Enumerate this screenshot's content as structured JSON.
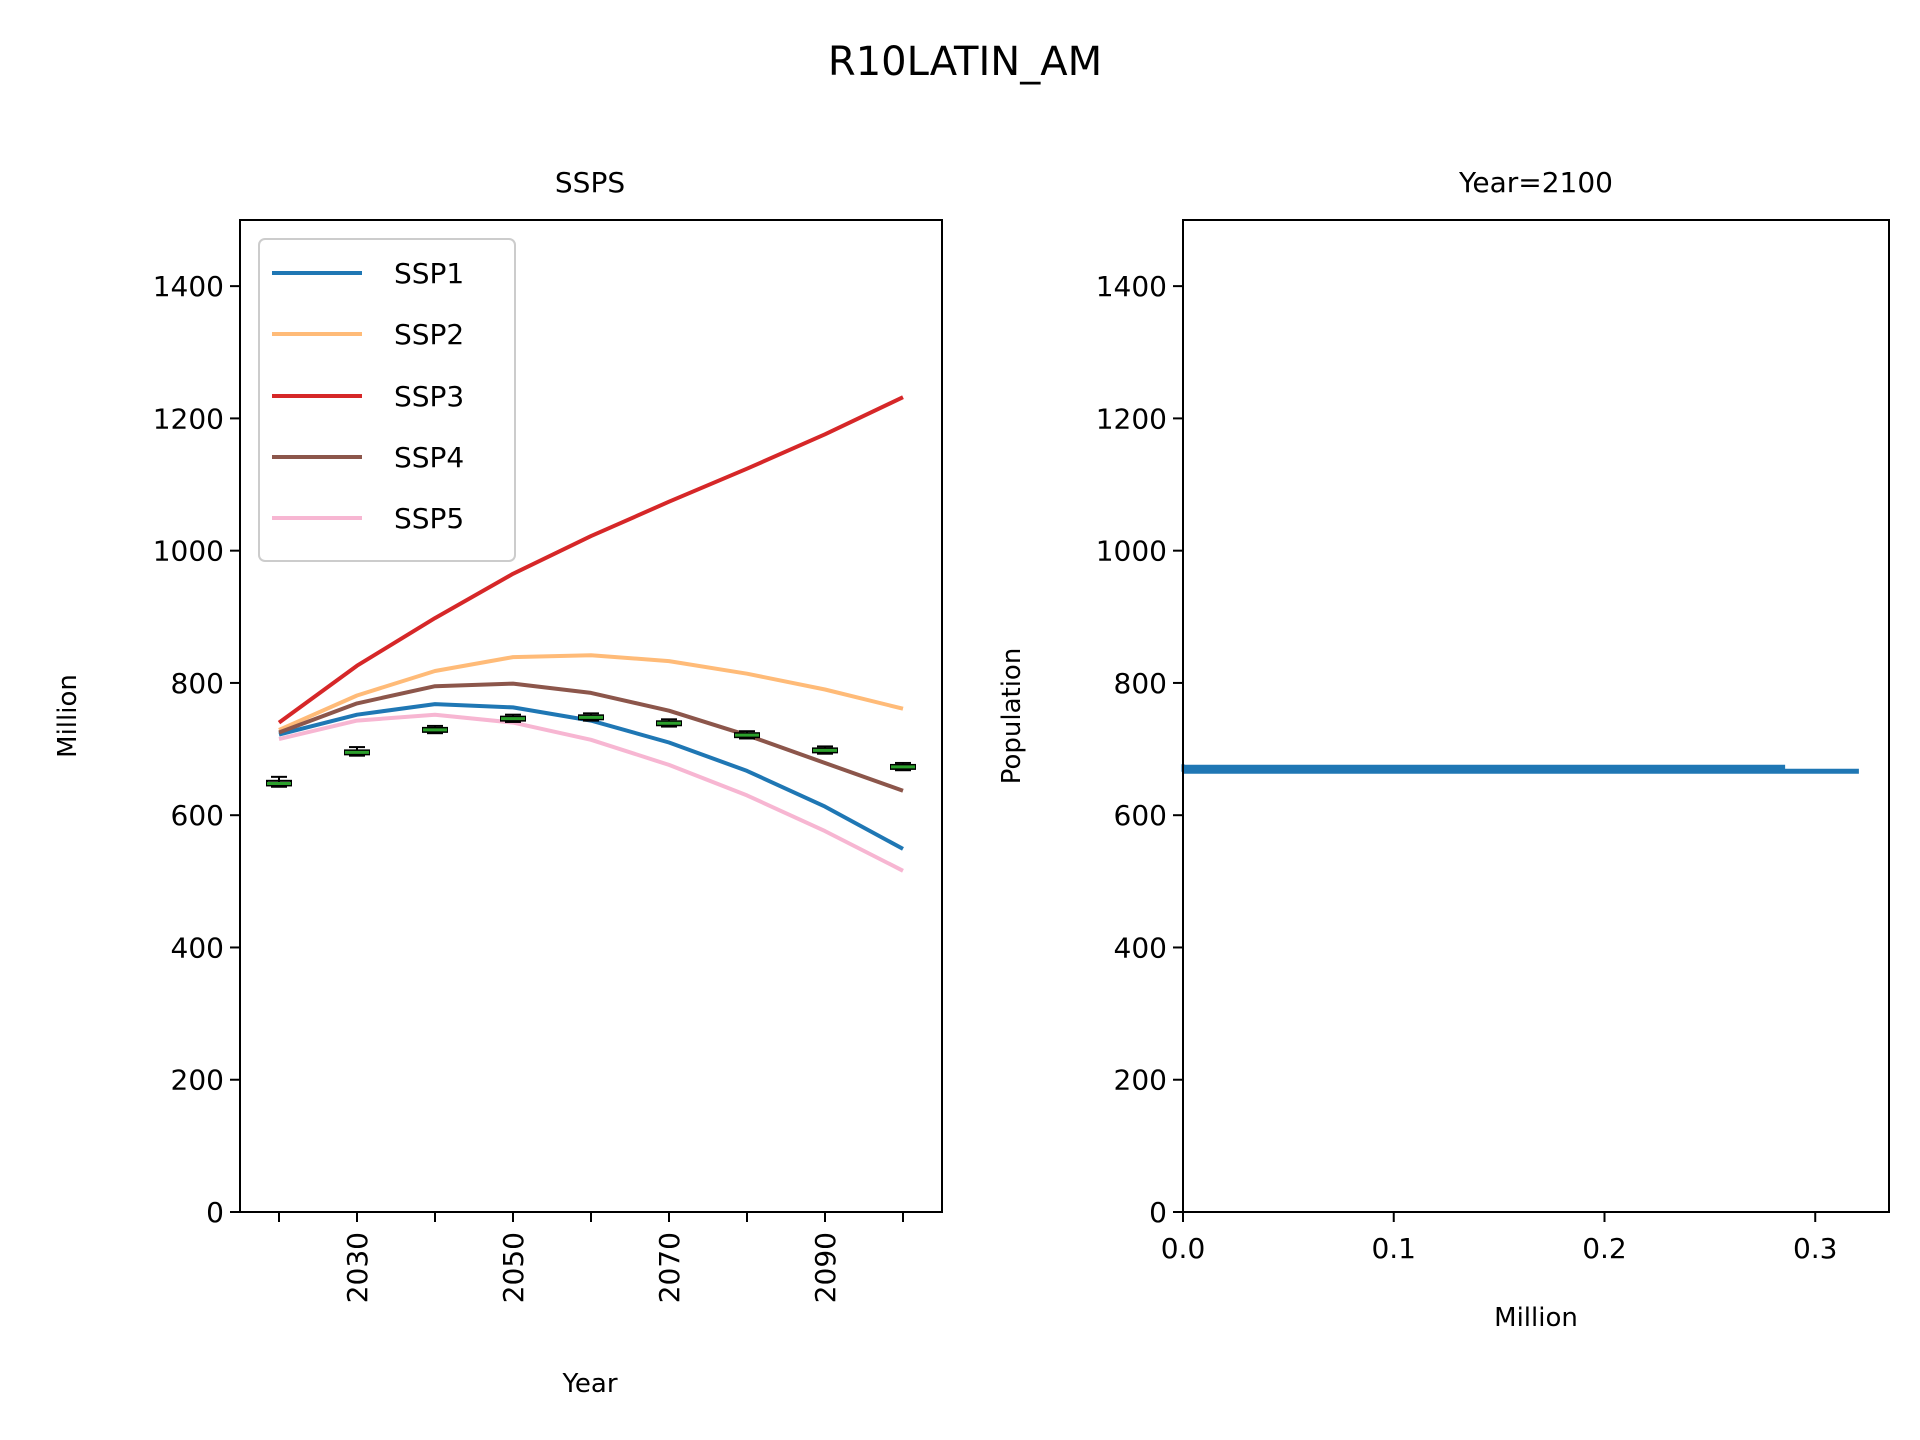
{
  "suptitle": "R10LATIN_AM",
  "colors": {
    "SSP1": "#1f77b4",
    "SSP2": "#ffbb78",
    "SSP3": "#d62728",
    "SSP4": "#8c564b",
    "SSP5": "#f7b6d2",
    "box_median": "#2ca02c",
    "hist": "#1f77b4"
  },
  "chart_data": [
    {
      "type": "line",
      "title": "SSPS",
      "xlabel": "Year",
      "ylabel": "Million",
      "xlim": [
        2015,
        2105
      ],
      "ylim": [
        0,
        1500
      ],
      "xticks": [
        2020,
        2030,
        2040,
        2050,
        2060,
        2070,
        2080,
        2090,
        2100
      ],
      "xtick_labels": [
        "",
        "2030",
        "",
        "2050",
        "",
        "2070",
        "",
        "2090",
        ""
      ],
      "yticks": [
        0,
        200,
        400,
        600,
        800,
        1000,
        1200,
        1400
      ],
      "ytick_labels": [
        "0",
        "200",
        "400",
        "600",
        "800",
        "1000",
        "1200",
        "1400"
      ],
      "legend_position": "top-left",
      "x": [
        2020,
        2030,
        2040,
        2050,
        2060,
        2070,
        2080,
        2090,
        2100
      ],
      "series": [
        {
          "name": "SSP1",
          "values": [
            722,
            752,
            768,
            763,
            743,
            710,
            667,
            613,
            549
          ]
        },
        {
          "name": "SSP2",
          "values": [
            729,
            781,
            818,
            839,
            842,
            833,
            814,
            790,
            761
          ]
        },
        {
          "name": "SSP3",
          "values": [
            740,
            826,
            898,
            965,
            1022,
            1074,
            1124,
            1176,
            1232
          ]
        },
        {
          "name": "SSP4",
          "values": [
            725,
            769,
            795,
            799,
            785,
            758,
            721,
            679,
            637
          ]
        },
        {
          "name": "SSP5",
          "values": [
            715,
            743,
            752,
            740,
            714,
            676,
            630,
            576,
            516
          ]
        }
      ],
      "boxes": {
        "x": [
          2020,
          2030,
          2040,
          2050,
          2060,
          2070,
          2080,
          2090,
          2100
        ],
        "q1": [
          645,
          692,
          726,
          743,
          745,
          736,
          718,
          695,
          670
        ],
        "median": [
          648,
          695,
          729,
          746,
          748,
          739,
          721,
          698,
          673
        ],
        "q3": [
          652,
          698,
          732,
          749,
          751,
          742,
          724,
          701,
          676
        ],
        "whisker_low": [
          643,
          690,
          724,
          741,
          743,
          734,
          716,
          693,
          668
        ],
        "whisker_high": [
          658,
          703,
          735,
          752,
          754,
          745,
          727,
          704,
          679
        ]
      }
    },
    {
      "type": "bar",
      "orientation": "horizontal",
      "title": "Year=2100",
      "xlabel": "Million",
      "ylabel": "Population",
      "xlim": [
        0,
        0.335
      ],
      "ylim": [
        0,
        1500
      ],
      "xticks": [
        0.0,
        0.1,
        0.2,
        0.3
      ],
      "xtick_labels": [
        "0.0",
        "0.1",
        "0.2",
        "0.3"
      ],
      "yticks": [
        0,
        200,
        400,
        600,
        800,
        1000,
        1200,
        1400
      ],
      "ytick_labels": [
        "0",
        "200",
        "400",
        "600",
        "800",
        "1000",
        "1200",
        "1400"
      ],
      "bins": [
        {
          "y0": 665,
          "y1": 668,
          "value": 0.32
        },
        {
          "y0": 668,
          "y1": 671,
          "value": 0.0
        },
        {
          "y0": 671,
          "y1": 674,
          "value": 0.285
        },
        {
          "y0": 674,
          "y1": 677,
          "value": 0.0
        }
      ]
    }
  ]
}
